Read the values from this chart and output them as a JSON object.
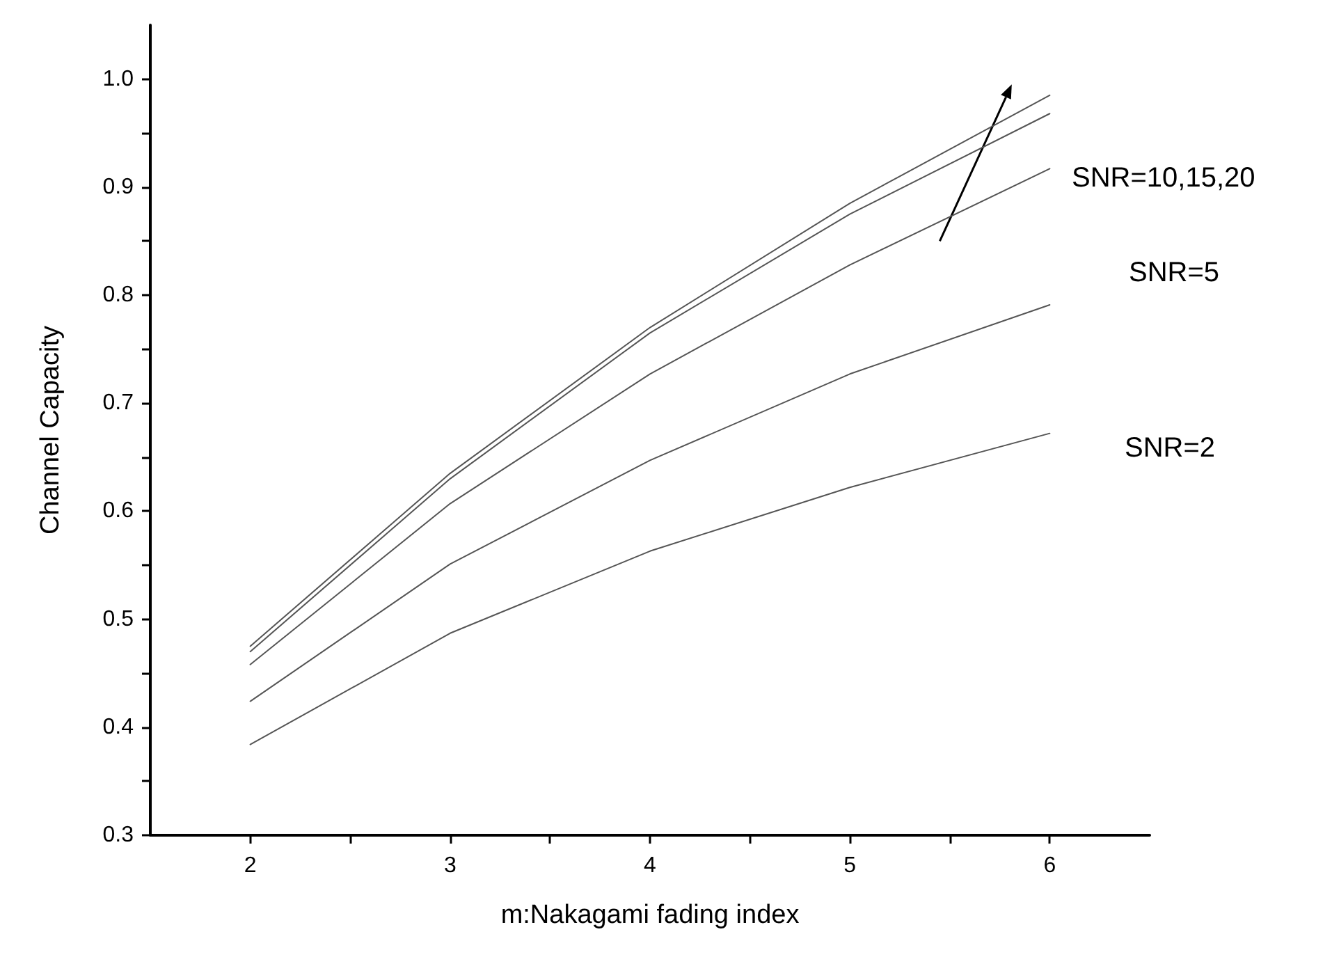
{
  "chart_data": {
    "type": "line",
    "xlabel": "m:Nakagami fading index",
    "ylabel": "Channel Capacity",
    "x": [
      2,
      3,
      4,
      5,
      6
    ],
    "series": [
      {
        "color": "#555555",
        "values": [
          0.475,
          0.635,
          0.77,
          0.885,
          0.985
        ]
      },
      {
        "color": "#555555",
        "values": [
          0.47,
          0.63,
          0.765,
          0.875,
          0.968
        ]
      },
      {
        "color": "#555555",
        "values": [
          0.458,
          0.607,
          0.727,
          0.828,
          0.917
        ]
      },
      {
        "color": "#555555",
        "values": [
          0.424,
          0.551,
          0.647,
          0.727,
          0.791
        ]
      },
      {
        "color": "#555555",
        "values": [
          0.384,
          0.487,
          0.563,
          0.622,
          0.672
        ]
      }
    ],
    "xlim": [
      1.5,
      6.5
    ],
    "xticks": [
      2,
      {
        "value": 2.5,
        "label": null
      },
      3,
      {
        "value": 3.5,
        "label": null
      },
      4,
      {
        "value": 4.5,
        "label": null
      },
      5,
      {
        "value": 5.5,
        "label": null
      },
      6
    ],
    "ylim": [
      0.3,
      1.05
    ],
    "yticks": [
      "0.3",
      {
        "value": 0.35,
        "label": null
      },
      0.4,
      {
        "value": 0.45,
        "label": null
      },
      0.5,
      {
        "value": 0.55,
        "label": null
      },
      0.6,
      {
        "value": 0.65,
        "label": null
      },
      0.7,
      {
        "value": 0.75,
        "label": null
      },
      0.8,
      {
        "value": 0.85,
        "label": null
      },
      0.9,
      {
        "value": 0.95,
        "label": null
      },
      {
        "value": 1.0,
        "label": "1.0"
      }
    ],
    "annotations": [
      "SNR=10,15,20",
      "SNR=5",
      "SNR=2"
    ],
    "grid": false,
    "marker": "none",
    "line_style": "solid"
  }
}
